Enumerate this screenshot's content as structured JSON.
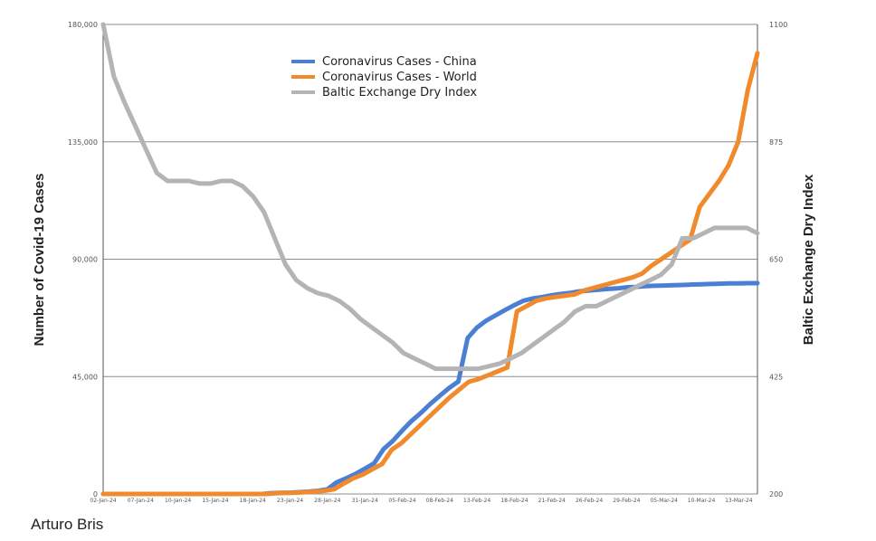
{
  "credit": "Arturo Bris",
  "chart_data": {
    "type": "line",
    "ylabel": "Number of Covid-19 Cases",
    "y2label": "Baltic Exchange Dry Index",
    "ylim": [
      0,
      180000
    ],
    "y2lim": [
      200,
      1100
    ],
    "y_ticks": [
      "0",
      "45,000",
      "90,000",
      "135,000",
      "180,000"
    ],
    "y2_ticks": [
      "200",
      "425",
      "650",
      "875",
      "1100"
    ],
    "x_ticks": [
      "02-Jan-24",
      "07-Jan-24",
      "10-Jan-24",
      "15-Jan-24",
      "18-Jan-24",
      "23-Jan-24",
      "28-Jan-24",
      "31-Jan-24",
      "05-Feb-24",
      "08-Feb-24",
      "13-Feb-24",
      "18-Feb-24",
      "21-Feb-24",
      "26-Feb-24",
      "29-Feb-24",
      "05-Mar-24",
      "10-Mar-24",
      "13-Mar-24"
    ],
    "grid": true,
    "legend_position": "top-center",
    "series": [
      {
        "name": "Coronavirus Cases - China",
        "axis": "left",
        "color": "#4a7fd4",
        "values": [
          0,
          0,
          0,
          0,
          0,
          0,
          0,
          0,
          0,
          0,
          0,
          0,
          0,
          0,
          0,
          0,
          0,
          0,
          300,
          400,
          500,
          700,
          900,
          1200,
          1800,
          4500,
          6000,
          7700,
          9700,
          11800,
          17200,
          20400,
          24300,
          28000,
          31100,
          34500,
          37600,
          40600,
          43100,
          59800,
          63800,
          66500,
          68500,
          70500,
          72400,
          74100,
          75000,
          75500,
          76200,
          76700,
          77100,
          77700,
          78000,
          78300,
          78600,
          78800,
          79200,
          79400,
          79700,
          79800,
          79900,
          80000,
          80100,
          80300,
          80400,
          80500,
          80600,
          80700,
          80700,
          80800,
          80800
        ]
      },
      {
        "name": "Coronavirus Cases - World",
        "axis": "left",
        "color": "#f08a2c",
        "values": [
          0,
          0,
          0,
          0,
          0,
          0,
          0,
          0,
          0,
          0,
          0,
          0,
          0,
          0,
          0,
          0,
          0,
          0,
          300,
          400,
          500,
          700,
          900,
          1200,
          1800,
          4000,
          6000,
          7500,
          9500,
          11500,
          17000,
          19500,
          23000,
          26500,
          30000,
          33500,
          37000,
          40000,
          43000,
          44000,
          45500,
          47000,
          48500,
          70000,
          72000,
          74000,
          75000,
          75500,
          76000,
          76500,
          78000,
          79000,
          80000,
          81000,
          82000,
          83000,
          84500,
          87500,
          90000,
          92500,
          95000,
          97500,
          110000,
          115000,
          120000,
          126000,
          135000,
          155000,
          169000
        ]
      },
      {
        "name": "Baltic Exchange Dry Index",
        "axis": "right",
        "color": "#b4b4b4",
        "values": [
          1100,
          1000,
          950,
          905,
          860,
          815,
          800,
          800,
          800,
          795,
          795,
          800,
          800,
          790,
          770,
          740,
          690,
          640,
          610,
          595,
          585,
          580,
          570,
          555,
          535,
          520,
          505,
          490,
          470,
          460,
          450,
          440,
          440,
          440,
          440,
          440,
          445,
          450,
          460,
          470,
          485,
          500,
          515,
          530,
          550,
          560,
          560,
          570,
          580,
          590,
          600,
          610,
          620,
          640,
          690,
          690,
          700,
          710,
          710,
          710,
          710,
          700
        ]
      }
    ]
  }
}
